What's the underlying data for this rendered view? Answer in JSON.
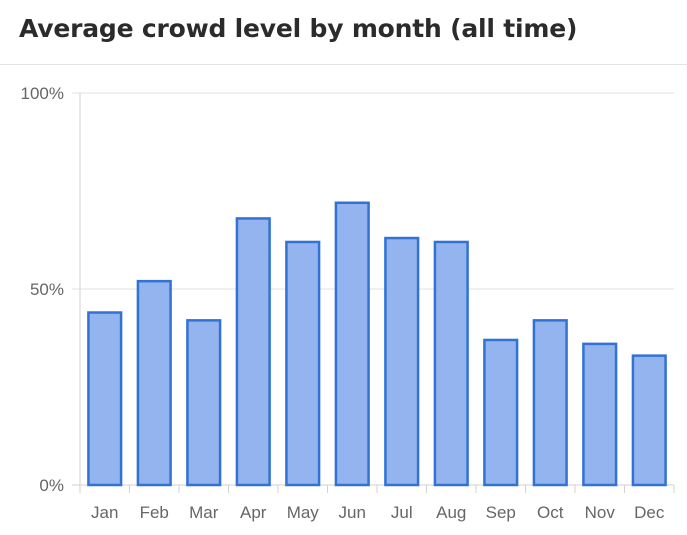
{
  "header": {
    "title": "Average crowd level by month (all time)"
  },
  "chart_data": {
    "type": "bar",
    "title": "Average crowd level by month (all time)",
    "xlabel": "",
    "ylabel": "",
    "categories": [
      "Jan",
      "Feb",
      "Mar",
      "Apr",
      "May",
      "Jun",
      "Jul",
      "Aug",
      "Sep",
      "Oct",
      "Nov",
      "Dec"
    ],
    "values": [
      44,
      52,
      42,
      68,
      62,
      72,
      63,
      62,
      37,
      42,
      36,
      33
    ],
    "ylim": [
      0,
      100
    ],
    "y_ticks": [
      {
        "value": 0,
        "label": "0%"
      },
      {
        "value": 50,
        "label": "50%"
      },
      {
        "value": 100,
        "label": "100%"
      }
    ],
    "grid": true,
    "legend": "none",
    "colors": {
      "bar_fill": "#93b4ee",
      "bar_stroke": "#3272d4"
    }
  }
}
